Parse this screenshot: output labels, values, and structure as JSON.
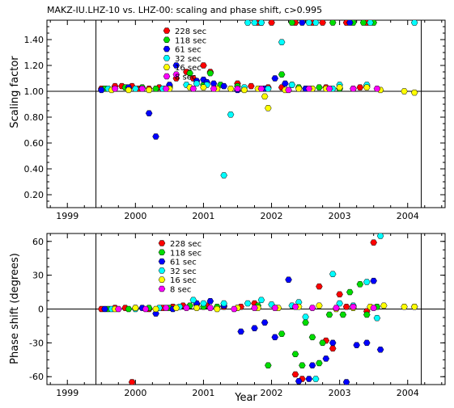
{
  "chart_data": [
    {
      "type": "scatter",
      "title": "MAKZ-IU.LHZ-10 vs. LHZ-00: scaling and phase shift, c>0.995",
      "xlabel": "",
      "ylabel": "Scaling factor",
      "xlim": [
        1998.7,
        2004.55
      ],
      "ylim": [
        0.1,
        1.55
      ],
      "xticks": [
        1999,
        2000,
        2001,
        2002,
        2003,
        2004
      ],
      "yticks": [
        0.2,
        0.4,
        0.6,
        0.8,
        1.0,
        1.2,
        1.4
      ],
      "ytick_labels": [
        "0.20",
        "0.40",
        "0.60",
        "0.80",
        "1.00",
        "1.20",
        "1.40"
      ],
      "reference_line": 1.0,
      "vlines": [
        1999.42,
        2004.2
      ],
      "legend_placement": "top-left",
      "series": [
        {
          "name": "228 sec",
          "color": "#ff0000",
          "points": [
            [
              1999.5,
              1.02
            ],
            [
              1999.7,
              1.04
            ],
            [
              1999.8,
              1.04
            ],
            [
              1999.95,
              1.04
            ],
            [
              2000.05,
              1.02
            ],
            [
              2000.2,
              1.02
            ],
            [
              2000.35,
              1.03
            ],
            [
              2000.5,
              1.04
            ],
            [
              2000.6,
              1.1
            ],
            [
              2000.75,
              1.15
            ],
            [
              2000.85,
              1.1
            ],
            [
              2001.0,
              1.2
            ],
            [
              2001.1,
              1.15
            ],
            [
              2001.5,
              1.06
            ],
            [
              2001.7,
              1.04
            ],
            [
              2001.95,
              1.03
            ],
            [
              2002.15,
              1.03
            ],
            [
              2002.3,
              1.05
            ],
            [
              2002.5,
              1.02
            ],
            [
              2002.8,
              1.03
            ],
            [
              2003.0,
              1.02
            ],
            [
              2003.3,
              1.03
            ],
            [
              2001.8,
              1.55
            ],
            [
              2002.0,
              1.55
            ],
            [
              2002.35,
              1.55
            ],
            [
              2002.6,
              1.55
            ],
            [
              2002.75,
              1.55
            ],
            [
              2003.1,
              1.55
            ],
            [
              2003.4,
              1.55
            ]
          ]
        },
        {
          "name": "118 sec",
          "color": "#00dd00",
          "points": [
            [
              1999.55,
              1.02
            ],
            [
              1999.85,
              1.03
            ],
            [
              2000.1,
              1.03
            ],
            [
              2000.3,
              1.02
            ],
            [
              2000.5,
              1.03
            ],
            [
              2000.8,
              1.14
            ],
            [
              2001.0,
              1.05
            ],
            [
              2001.1,
              1.14
            ],
            [
              2001.25,
              1.05
            ],
            [
              2001.5,
              1.04
            ],
            [
              2001.9,
              1.02
            ],
            [
              2002.15,
              1.13
            ],
            [
              2002.4,
              1.03
            ],
            [
              2002.7,
              1.03
            ],
            [
              2003.0,
              1.02
            ],
            [
              2003.4,
              1.04
            ],
            [
              2002.3,
              1.55
            ],
            [
              2002.9,
              1.55
            ],
            [
              2003.2,
              1.55
            ],
            [
              2003.35,
              1.55
            ],
            [
              2003.5,
              1.55
            ]
          ]
        },
        {
          "name": "61 sec",
          "color": "#0000ff",
          "points": [
            [
              1999.5,
              1.01
            ],
            [
              1999.9,
              1.03
            ],
            [
              2000.2,
              0.83
            ],
            [
              2000.3,
              0.65
            ],
            [
              2000.5,
              1.05
            ],
            [
              2000.6,
              1.2
            ],
            [
              2000.9,
              1.08
            ],
            [
              2001.0,
              1.09
            ],
            [
              2001.05,
              1.07
            ],
            [
              2001.15,
              1.06
            ],
            [
              2001.3,
              1.04
            ],
            [
              2001.5,
              1.01
            ],
            [
              2001.9,
              1.02
            ],
            [
              2002.05,
              1.1
            ],
            [
              2002.2,
              1.06
            ],
            [
              2002.5,
              1.02
            ],
            [
              2001.85,
              1.55
            ],
            [
              2002.45,
              1.55
            ],
            [
              2003.15,
              1.55
            ]
          ]
        },
        {
          "name": "32 sec",
          "color": "#00ffff",
          "points": [
            [
              1999.6,
              1.02
            ],
            [
              2000.0,
              1.02
            ],
            [
              2000.4,
              1.02
            ],
            [
              2000.75,
              1.05
            ],
            [
              2000.9,
              1.06
            ],
            [
              2001.05,
              1.05
            ],
            [
              2001.3,
              0.35
            ],
            [
              2001.4,
              0.82
            ],
            [
              2001.6,
              1.03
            ],
            [
              2001.95,
              1.02
            ],
            [
              2002.15,
              1.38
            ],
            [
              2002.3,
              1.05
            ],
            [
              2002.6,
              1.02
            ],
            [
              2002.9,
              1.02
            ],
            [
              2003.0,
              1.05
            ],
            [
              2003.4,
              1.05
            ],
            [
              2001.65,
              1.55
            ],
            [
              2001.75,
              1.55
            ],
            [
              2001.85,
              1.55
            ],
            [
              2002.55,
              1.55
            ],
            [
              2002.65,
              1.55
            ],
            [
              2003.45,
              1.55
            ],
            [
              2004.1,
              1.55
            ]
          ]
        },
        {
          "name": "16 sec",
          "color": "#ffff00",
          "points": [
            [
              1999.65,
              1.01
            ],
            [
              1999.9,
              1.01
            ],
            [
              2000.2,
              1.01
            ],
            [
              2000.5,
              1.02
            ],
            [
              2000.8,
              1.03
            ],
            [
              2001.0,
              1.03
            ],
            [
              2001.2,
              1.02
            ],
            [
              2001.4,
              1.02
            ],
            [
              2001.6,
              1.01
            ],
            [
              2001.8,
              1.02
            ],
            [
              2001.9,
              0.96
            ],
            [
              2001.95,
              0.87
            ],
            [
              2002.2,
              1.01
            ],
            [
              2002.4,
              1.02
            ],
            [
              2002.6,
              1.02
            ],
            [
              2002.8,
              1.02
            ],
            [
              2003.0,
              1.03
            ],
            [
              2003.2,
              1.02
            ],
            [
              2003.4,
              1.03
            ],
            [
              2003.6,
              1.01
            ],
            [
              2003.95,
              1.0
            ],
            [
              2004.1,
              0.99
            ]
          ]
        },
        {
          "name": "8 sec",
          "color": "#ff00ff",
          "points": [
            [
              1999.7,
              1.02
            ],
            [
              2000.1,
              1.02
            ],
            [
              2000.45,
              1.02
            ],
            [
              2000.6,
              1.13
            ],
            [
              2000.85,
              1.02
            ],
            [
              2001.15,
              1.02
            ],
            [
              2001.5,
              1.02
            ],
            [
              2001.85,
              1.02
            ],
            [
              2002.25,
              1.01
            ],
            [
              2002.55,
              1.02
            ],
            [
              2002.85,
              1.02
            ],
            [
              2003.2,
              1.02
            ],
            [
              2003.55,
              1.02
            ]
          ]
        }
      ]
    },
    {
      "type": "scatter",
      "xlabel": "Year",
      "ylabel": "Phase shift (degrees)",
      "xlim": [
        1998.7,
        2004.55
      ],
      "ylim": [
        -67,
        67
      ],
      "xticks": [
        1999,
        2000,
        2001,
        2002,
        2003,
        2004
      ],
      "yticks": [
        -60,
        -30,
        0,
        30,
        60
      ],
      "ytick_labels": [
        "-60",
        "-30",
        "0",
        "30",
        "60"
      ],
      "reference_line": 0,
      "vlines": [
        1999.42,
        2004.2
      ],
      "legend_placement": "top-left",
      "series": [
        {
          "name": "228 sec",
          "color": "#ff0000",
          "points": [
            [
              1999.5,
              0
            ],
            [
              1999.7,
              1
            ],
            [
              1999.85,
              1
            ],
            [
              2000.0,
              1
            ],
            [
              2000.2,
              0
            ],
            [
              2000.4,
              1
            ],
            [
              2000.55,
              2
            ],
            [
              2000.7,
              3
            ],
            [
              2000.9,
              4
            ],
            [
              2001.05,
              3
            ],
            [
              2001.3,
              2
            ],
            [
              2001.55,
              2
            ],
            [
              2001.75,
              5
            ],
            [
              1999.95,
              -65
            ],
            [
              2002.35,
              -58
            ],
            [
              2002.45,
              -62
            ],
            [
              2002.7,
              20
            ],
            [
              2002.8,
              -28
            ],
            [
              2002.9,
              -35
            ],
            [
              2003.0,
              13
            ],
            [
              2003.1,
              2
            ],
            [
              2003.4,
              -2
            ],
            [
              2003.5,
              59
            ]
          ]
        },
        {
          "name": "118 sec",
          "color": "#00dd00",
          "points": [
            [
              1999.6,
              0
            ],
            [
              1999.9,
              0
            ],
            [
              2000.2,
              1
            ],
            [
              2000.5,
              1
            ],
            [
              2000.8,
              3
            ],
            [
              2001.0,
              2
            ],
            [
              2001.2,
              2
            ],
            [
              2001.5,
              1
            ],
            [
              2001.8,
              3
            ],
            [
              2001.95,
              -50
            ],
            [
              2002.15,
              -22
            ],
            [
              2002.35,
              -40
            ],
            [
              2002.45,
              -50
            ],
            [
              2002.5,
              -12
            ],
            [
              2002.6,
              -25
            ],
            [
              2002.7,
              -48
            ],
            [
              2002.75,
              -30
            ],
            [
              2002.85,
              -5
            ],
            [
              2003.05,
              -5
            ],
            [
              2003.15,
              15
            ],
            [
              2003.3,
              22
            ],
            [
              2003.4,
              -5
            ],
            [
              2003.55,
              2
            ]
          ]
        },
        {
          "name": "61 sec",
          "color": "#0000ff",
          "points": [
            [
              1999.55,
              0
            ],
            [
              2000.1,
              1
            ],
            [
              2000.3,
              -4
            ],
            [
              2000.55,
              0
            ],
            [
              2000.9,
              5
            ],
            [
              2001.1,
              7
            ],
            [
              2001.3,
              3
            ],
            [
              2001.55,
              -20
            ],
            [
              2001.75,
              -17
            ],
            [
              2001.9,
              -12
            ],
            [
              2002.05,
              -25
            ],
            [
              2002.25,
              26
            ],
            [
              2002.4,
              -64
            ],
            [
              2002.55,
              -62
            ],
            [
              2002.6,
              -50
            ],
            [
              2002.8,
              -44
            ],
            [
              2002.9,
              -30
            ],
            [
              2003.1,
              -65
            ],
            [
              2003.25,
              -32
            ],
            [
              2003.4,
              -30
            ],
            [
              2003.5,
              25
            ],
            [
              2003.6,
              -36
            ]
          ]
        },
        {
          "name": "32 sec",
          "color": "#00ffff",
          "points": [
            [
              1999.65,
              0
            ],
            [
              2000.0,
              0
            ],
            [
              2000.35,
              1
            ],
            [
              2000.65,
              2
            ],
            [
              2000.85,
              8
            ],
            [
              2001.0,
              5
            ],
            [
              2001.3,
              5
            ],
            [
              2001.65,
              5
            ],
            [
              2001.85,
              8
            ],
            [
              2002.0,
              4
            ],
            [
              2002.3,
              3
            ],
            [
              2002.4,
              6
            ],
            [
              2002.5,
              -7
            ],
            [
              2002.65,
              -62
            ],
            [
              2002.9,
              31
            ],
            [
              2003.0,
              5
            ],
            [
              2003.2,
              3
            ],
            [
              2003.4,
              24
            ],
            [
              2003.55,
              -8
            ],
            [
              2003.6,
              65
            ],
            [
              2004.1,
              2
            ]
          ]
        },
        {
          "name": "16 sec",
          "color": "#ffff00",
          "points": [
            [
              1999.7,
              0
            ],
            [
              2000.0,
              1
            ],
            [
              2000.3,
              0
            ],
            [
              2000.6,
              1
            ],
            [
              2000.9,
              1
            ],
            [
              2001.2,
              0
            ],
            [
              2001.5,
              1
            ],
            [
              2001.8,
              1
            ],
            [
              2002.1,
              1
            ],
            [
              2002.4,
              2
            ],
            [
              2002.7,
              3
            ],
            [
              2002.95,
              0
            ],
            [
              2003.2,
              1
            ],
            [
              2003.45,
              2
            ],
            [
              2003.65,
              3
            ],
            [
              2003.95,
              2
            ],
            [
              2004.1,
              2
            ]
          ]
        },
        {
          "name": "8 sec",
          "color": "#ff00ff",
          "points": [
            [
              1999.75,
              0
            ],
            [
              2000.15,
              0
            ],
            [
              2000.45,
              1
            ],
            [
              2000.75,
              1
            ],
            [
              2001.1,
              1
            ],
            [
              2001.45,
              0
            ],
            [
              2001.75,
              1
            ],
            [
              2002.05,
              1
            ],
            [
              2002.35,
              2
            ],
            [
              2002.6,
              1
            ],
            [
              2002.95,
              1
            ],
            [
              2003.2,
              2
            ],
            [
              2003.5,
              1
            ]
          ]
        }
      ]
    }
  ]
}
